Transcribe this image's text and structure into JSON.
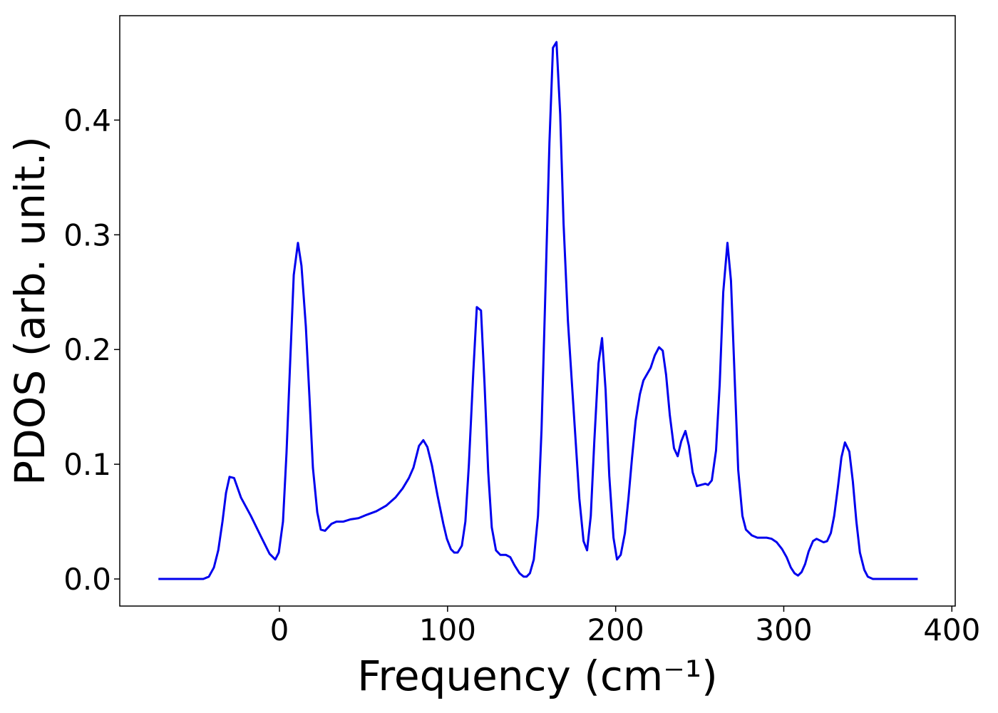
{
  "chart_data": {
    "type": "line",
    "xlabel": "Frequency (cm⁻¹)",
    "ylabel": "PDOS (arb. unit.)",
    "color": "#0000ee",
    "xlim": [
      -95,
      402
    ],
    "ylim": [
      -0.0236,
      0.491
    ],
    "xticks": [
      0,
      100,
      200,
      300,
      400
    ],
    "yticks": [
      {
        "value": 0,
        "label": "0.0"
      },
      0.1,
      0.2,
      0.3,
      0.4
    ],
    "x": [
      -72,
      -45.3,
      -42,
      -39,
      -36.4,
      -33.9,
      -31.8,
      -29.7,
      -27,
      -22.9,
      -17,
      -11,
      -5.9,
      -2.5,
      -0.4,
      2.1,
      4.2,
      6.4,
      8.5,
      11,
      13.1,
      15.7,
      17.8,
      19.9,
      22.5,
      24.6,
      27.1,
      30.9,
      33.9,
      38,
      42.4,
      47,
      52,
      57.6,
      63.6,
      69,
      73.3,
      77,
      79.7,
      83,
      85.6,
      88,
      90.7,
      94,
      97.5,
      99.6,
      102,
      104,
      106,
      108.5,
      110.6,
      112.7,
      115.3,
      117.4,
      119.9,
      122,
      124.2,
      126.3,
      128.8,
      131.4,
      134.7,
      137.3,
      139.8,
      142.8,
      145.3,
      147,
      149,
      151.3,
      153.8,
      155.9,
      158,
      160.6,
      162.7,
      164.8,
      167,
      169,
      171.6,
      174,
      176.3,
      178.4,
      180.9,
      183,
      185.2,
      187.3,
      189.8,
      191.9,
      194,
      196.2,
      198.7,
      200.8,
      203,
      205.5,
      207.6,
      209.7,
      211.9,
      214.4,
      216.5,
      220.8,
      223.3,
      225.8,
      228,
      230,
      232.2,
      234.7,
      236.9,
      239,
      241.5,
      243.6,
      245.8,
      248.3,
      253.4,
      255,
      257.2,
      259.7,
      261.9,
      264,
      266.5,
      268.6,
      270.8,
      272.9,
      275.4,
      277.5,
      281,
      284.3,
      289.8,
      292.8,
      295.8,
      299,
      301.7,
      304.2,
      306.4,
      308.5,
      310.6,
      312.7,
      314.8,
      317.4,
      319.5,
      323.7,
      325.8,
      328,
      330,
      332.2,
      334.3,
      336.4,
      339,
      341.1,
      343.2,
      345.3,
      347.9,
      350,
      353,
      379.7
    ],
    "values": [
      0,
      0,
      0.002,
      0.01,
      0.025,
      0.05,
      0.075,
      0.089,
      0.088,
      0.071,
      0.055,
      0.037,
      0.022,
      0.017,
      0.023,
      0.05,
      0.11,
      0.19,
      0.265,
      0.293,
      0.273,
      0.22,
      0.16,
      0.097,
      0.058,
      0.043,
      0.042,
      0.048,
      0.05,
      0.05,
      0.052,
      0.053,
      0.056,
      0.059,
      0.064,
      0.071,
      0.079,
      0.088,
      0.097,
      0.116,
      0.121,
      0.115,
      0.099,
      0.073,
      0.048,
      0.035,
      0.026,
      0.023,
      0.023,
      0.029,
      0.05,
      0.1,
      0.18,
      0.237,
      0.234,
      0.17,
      0.093,
      0.045,
      0.025,
      0.021,
      0.021,
      0.019,
      0.012,
      0.005,
      0.002,
      0.002,
      0.005,
      0.017,
      0.055,
      0.13,
      0.24,
      0.38,
      0.463,
      0.468,
      0.405,
      0.31,
      0.225,
      0.17,
      0.118,
      0.07,
      0.033,
      0.025,
      0.055,
      0.12,
      0.188,
      0.21,
      0.165,
      0.09,
      0.036,
      0.017,
      0.021,
      0.04,
      0.07,
      0.105,
      0.138,
      0.161,
      0.173,
      0.184,
      0.195,
      0.202,
      0.199,
      0.178,
      0.143,
      0.114,
      0.107,
      0.12,
      0.129,
      0.116,
      0.093,
      0.081,
      0.083,
      0.082,
      0.086,
      0.112,
      0.17,
      0.25,
      0.293,
      0.26,
      0.175,
      0.095,
      0.055,
      0.043,
      0.038,
      0.036,
      0.036,
      0.035,
      0.032,
      0.026,
      0.019,
      0.01,
      0.005,
      0.003,
      0.006,
      0.013,
      0.024,
      0.033,
      0.035,
      0.032,
      0.033,
      0.04,
      0.055,
      0.08,
      0.106,
      0.119,
      0.111,
      0.085,
      0.05,
      0.023,
      0.008,
      0.002,
      0,
      0
    ]
  }
}
